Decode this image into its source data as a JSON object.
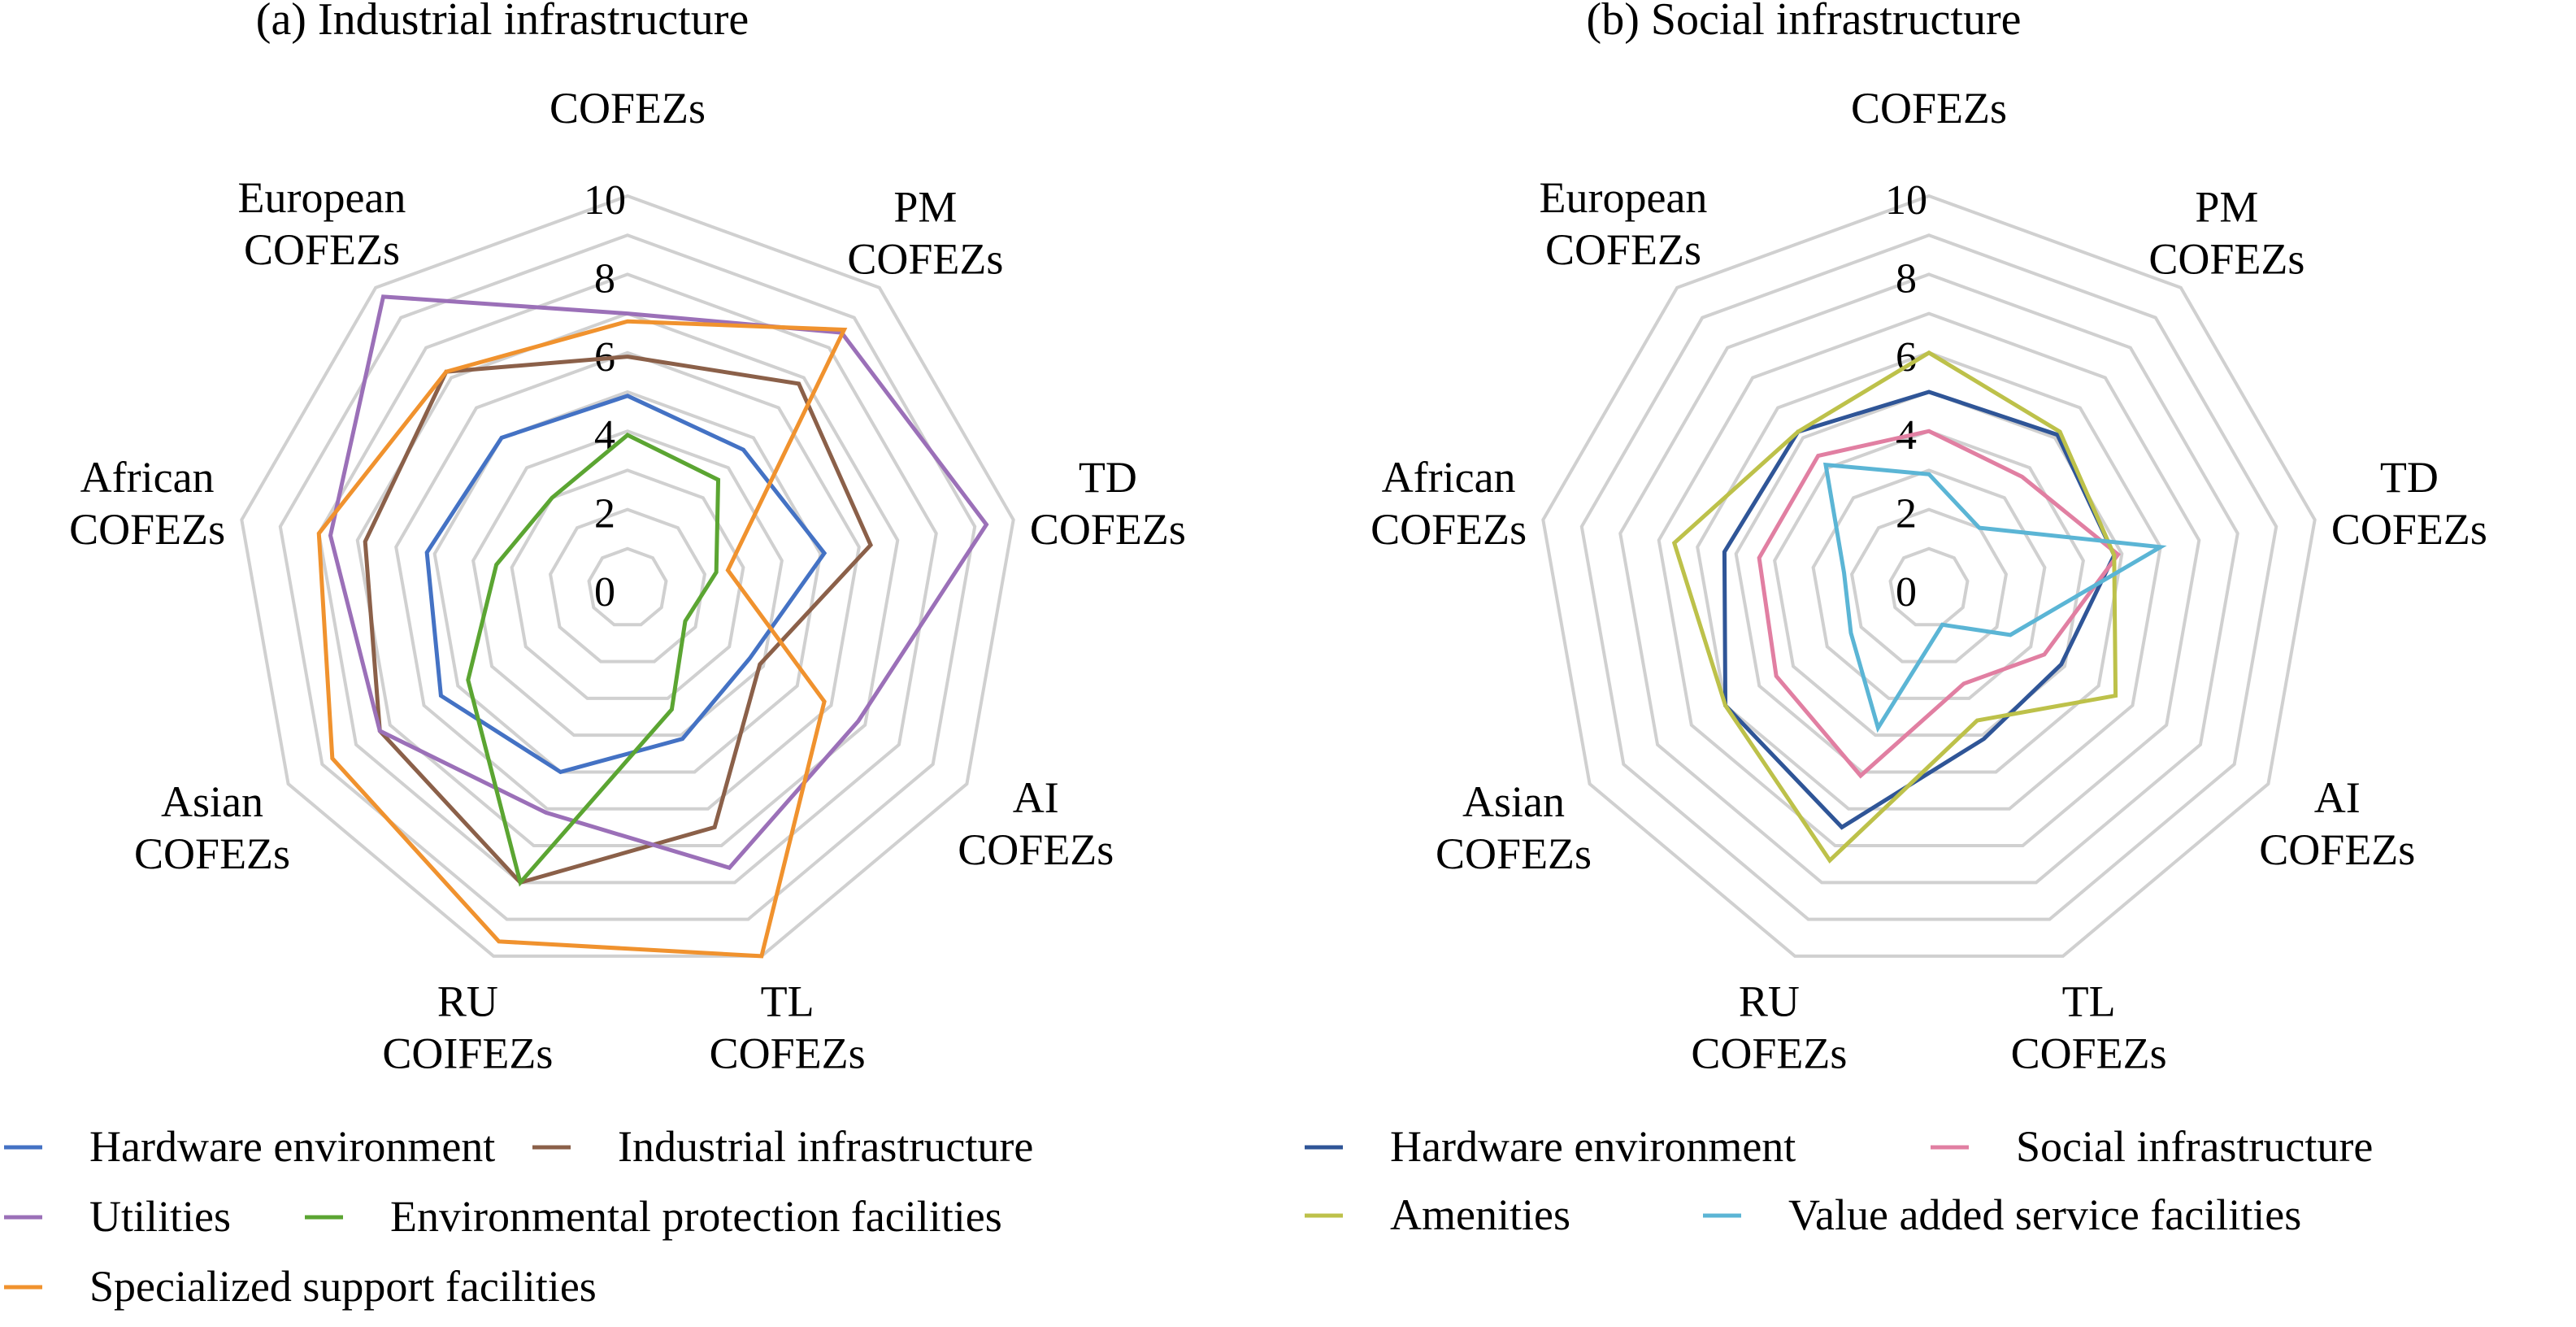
{
  "chart_data": [
    {
      "type": "radar",
      "title": "(a) Industrial infrastructure",
      "axes": [
        [
          "COFEZs"
        ],
        [
          "PM",
          "COFEZs"
        ],
        [
          "TD",
          "COFEZs"
        ],
        [
          "AI",
          "COFEZs"
        ],
        [
          "TL",
          "COFEZs"
        ],
        [
          "RU",
          "COIFEZs"
        ],
        [
          "Asian",
          "COFEZs"
        ],
        [
          "African",
          "COFEZs"
        ],
        [
          "European",
          "COFEZs"
        ]
      ],
      "range": [
        0,
        10
      ],
      "ticks": [
        0,
        2,
        4,
        6,
        8,
        10
      ],
      "grid": true,
      "legend_position": "bottom",
      "series": [
        {
          "name": "Hardware environment",
          "color": "#4472C4",
          "values": [
            4.9,
            4.6,
            5.1,
            3.6,
            4.1,
            5.0,
            5.5,
            5.2,
            5.0
          ]
        },
        {
          "name": "Industrial infrastructure",
          "color": "#8B6049",
          "values": [
            5.9,
            6.8,
            6.3,
            3.9,
            6.5,
            8.0,
            7.3,
            6.8,
            7.2
          ]
        },
        {
          "name": "Utilities",
          "color": "#9B70B8",
          "values": [
            7.0,
            8.5,
            9.3,
            6.8,
            7.6,
            6.1,
            7.3,
            7.7,
            9.7
          ]
        },
        {
          "name": "Environmental protection facilities",
          "color": "#5BA532",
          "values": [
            3.9,
            3.6,
            2.3,
            1.7,
            3.3,
            8.0,
            4.7,
            3.4,
            3.0
          ]
        },
        {
          "name": "Specialized support facilities",
          "color": "#F0922E",
          "values": [
            6.8,
            8.6,
            2.6,
            5.8,
            10.0,
            9.6,
            8.7,
            8.0,
            7.2
          ]
        }
      ]
    },
    {
      "type": "radar",
      "title": "(b) Social infrastructure",
      "axes": [
        [
          "COFEZs"
        ],
        [
          "PM",
          "COFEZs"
        ],
        [
          "TD",
          "COFEZs"
        ],
        [
          "AI",
          "COFEZs"
        ],
        [
          "TL",
          "COFEZs"
        ],
        [
          "RU",
          "COFEZs"
        ],
        [
          "Asian",
          "COFEZs"
        ],
        [
          "African",
          "COFEZs"
        ],
        [
          "European",
          "COFEZs"
        ]
      ],
      "range": [
        0,
        10
      ],
      "ticks": [
        0,
        2,
        4,
        6,
        8,
        10
      ],
      "grid": true,
      "legend_position": "bottom",
      "series": [
        {
          "name": "Hardware environment",
          "color": "#2F5597",
          "values": [
            5.0,
            5.1,
            4.8,
            3.9,
            4.1,
            6.5,
            6.0,
            5.3,
            5.2
          ]
        },
        {
          "name": "Social infrastructure",
          "color": "#E17FA2",
          "values": [
            4.0,
            3.7,
            4.9,
            3.4,
            2.6,
            5.1,
            4.5,
            4.4,
            4.4
          ]
        },
        {
          "name": "Amenities",
          "color": "#BDC14A",
          "values": [
            6.0,
            5.2,
            4.8,
            5.5,
            3.6,
            7.4,
            6.0,
            6.6,
            5.2
          ]
        },
        {
          "name": "Value added service facilities",
          "color": "#5BB5D5",
          "values": [
            2.9,
            2.0,
            6.0,
            2.4,
            1.0,
            3.8,
            2.3,
            2.2,
            4.1
          ]
        }
      ]
    }
  ]
}
